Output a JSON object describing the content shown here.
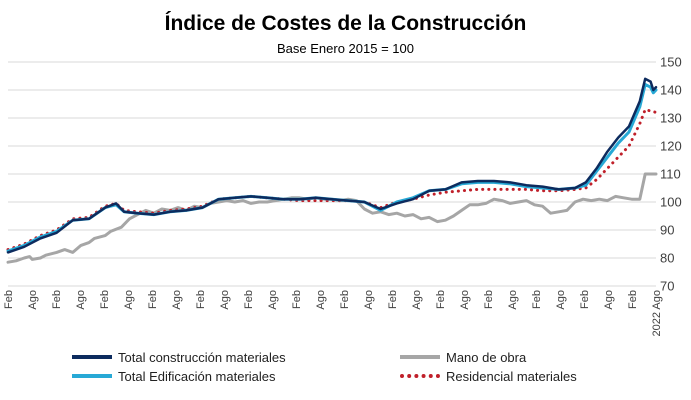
{
  "chart_data": {
    "type": "line",
    "title": "Índice de Costes de la Construcción",
    "subtitle": "Base Enero 2015 = 100",
    "ylim": [
      70,
      150
    ],
    "yticks": [
      70,
      80,
      90,
      100,
      110,
      120,
      130,
      140,
      150
    ],
    "x_tick_labels": [
      "Feb",
      "Ago",
      "Feb",
      "Ago",
      "Feb",
      "Ago",
      "Feb",
      "Ago",
      "Feb",
      "Ago",
      "Feb",
      "Ago",
      "Feb",
      "Ago",
      "Feb",
      "Ago",
      "Feb",
      "Ago",
      "Feb",
      "Ago",
      "Feb",
      "Ago",
      "Feb",
      "Ago",
      "Feb",
      "Ago",
      "Feb",
      "2022 Ago"
    ],
    "x_start": "2009-02",
    "grid": "horizontal",
    "legend_position": "bottom",
    "series": [
      {
        "name": "Total construcción materiales",
        "color": "#0d2b5e",
        "style": "solid",
        "points": [
          [
            0,
            82
          ],
          [
            6,
            84
          ],
          [
            12,
            87
          ],
          [
            18,
            89
          ],
          [
            24,
            93.5
          ],
          [
            30,
            94
          ],
          [
            36,
            98
          ],
          [
            40,
            99.5
          ],
          [
            43,
            96.5
          ],
          [
            48,
            96
          ],
          [
            54,
            95.5
          ],
          [
            60,
            96.5
          ],
          [
            66,
            97
          ],
          [
            72,
            98
          ],
          [
            78,
            101
          ],
          [
            84,
            101.5
          ],
          [
            90,
            102
          ],
          [
            96,
            101.5
          ],
          [
            102,
            101
          ],
          [
            108,
            101
          ],
          [
            114,
            101.5
          ],
          [
            120,
            101
          ],
          [
            126,
            100.5
          ],
          [
            132,
            100
          ],
          [
            138,
            97.5
          ],
          [
            144,
            99.5
          ],
          [
            150,
            101
          ],
          [
            156,
            104
          ],
          [
            162,
            104.5
          ],
          [
            168,
            107
          ],
          [
            174,
            107.5
          ],
          [
            180,
            107.5
          ],
          [
            186,
            107
          ],
          [
            192,
            106
          ],
          [
            198,
            105.5
          ],
          [
            204,
            104.5
          ],
          [
            210,
            105
          ],
          [
            214,
            107
          ],
          [
            218,
            112
          ],
          [
            222,
            118
          ],
          [
            226,
            123
          ],
          [
            230,
            127
          ],
          [
            234,
            136
          ],
          [
            236,
            144
          ],
          [
            238,
            143
          ],
          [
            239,
            140
          ],
          [
            240,
            141
          ]
        ]
      },
      {
        "name": "Total Edificación materiales",
        "color": "#27a9d6",
        "style": "solid",
        "points": [
          [
            0,
            82.5
          ],
          [
            6,
            84.5
          ],
          [
            12,
            87.5
          ],
          [
            18,
            89.5
          ],
          [
            24,
            93.5
          ],
          [
            30,
            94
          ],
          [
            36,
            98
          ],
          [
            40,
            99
          ],
          [
            43,
            96.5
          ],
          [
            48,
            96
          ],
          [
            54,
            95.5
          ],
          [
            60,
            96.5
          ],
          [
            66,
            97
          ],
          [
            72,
            98
          ],
          [
            78,
            101
          ],
          [
            84,
            101.5
          ],
          [
            90,
            102
          ],
          [
            96,
            101.5
          ],
          [
            102,
            101
          ],
          [
            108,
            101
          ],
          [
            114,
            101.5
          ],
          [
            120,
            101
          ],
          [
            126,
            100.5
          ],
          [
            132,
            100
          ],
          [
            138,
            97
          ],
          [
            144,
            100
          ],
          [
            150,
            101.5
          ],
          [
            156,
            104
          ],
          [
            162,
            104.5
          ],
          [
            168,
            106.5
          ],
          [
            174,
            107
          ],
          [
            180,
            107
          ],
          [
            186,
            106.5
          ],
          [
            192,
            105.5
          ],
          [
            198,
            105
          ],
          [
            204,
            104.5
          ],
          [
            210,
            105
          ],
          [
            214,
            106
          ],
          [
            218,
            111
          ],
          [
            222,
            116
          ],
          [
            226,
            121
          ],
          [
            230,
            125
          ],
          [
            234,
            134
          ],
          [
            236,
            142
          ],
          [
            238,
            141
          ],
          [
            239,
            139
          ],
          [
            240,
            140
          ]
        ]
      },
      {
        "name": "Mano de obra",
        "color": "#a6a6a6",
        "style": "solid",
        "points": [
          [
            0,
            78.5
          ],
          [
            3,
            79
          ],
          [
            6,
            80
          ],
          [
            8,
            80.5
          ],
          [
            9,
            79.5
          ],
          [
            12,
            80
          ],
          [
            14,
            81
          ],
          [
            18,
            82
          ],
          [
            21,
            83
          ],
          [
            24,
            82
          ],
          [
            27,
            84.5
          ],
          [
            30,
            85.5
          ],
          [
            32,
            87
          ],
          [
            36,
            88
          ],
          [
            38,
            89.5
          ],
          [
            42,
            91
          ],
          [
            45,
            94
          ],
          [
            48,
            95.5
          ],
          [
            51,
            97
          ],
          [
            54,
            96
          ],
          [
            57,
            97.5
          ],
          [
            60,
            97
          ],
          [
            63,
            98
          ],
          [
            66,
            97
          ],
          [
            69,
            98.5
          ],
          [
            72,
            98
          ],
          [
            75,
            99.5
          ],
          [
            78,
            100
          ],
          [
            81,
            100.5
          ],
          [
            84,
            100
          ],
          [
            87,
            100.5
          ],
          [
            90,
            99.5
          ],
          [
            93,
            100
          ],
          [
            96,
            100
          ],
          [
            99,
            100.5
          ],
          [
            102,
            101
          ],
          [
            105,
            101.5
          ],
          [
            108,
            101.5
          ],
          [
            111,
            101
          ],
          [
            114,
            101.5
          ],
          [
            117,
            101
          ],
          [
            120,
            101
          ],
          [
            123,
            100.5
          ],
          [
            126,
            101
          ],
          [
            129,
            100.5
          ],
          [
            132,
            97.5
          ],
          [
            135,
            96
          ],
          [
            138,
            96.5
          ],
          [
            141,
            95.5
          ],
          [
            144,
            96
          ],
          [
            147,
            95
          ],
          [
            150,
            95.5
          ],
          [
            153,
            94
          ],
          [
            156,
            94.5
          ],
          [
            159,
            93
          ],
          [
            162,
            93.5
          ],
          [
            165,
            95
          ],
          [
            168,
            97
          ],
          [
            171,
            99
          ],
          [
            174,
            99
          ],
          [
            177,
            99.5
          ],
          [
            180,
            101
          ],
          [
            183,
            100.5
          ],
          [
            186,
            99.5
          ],
          [
            189,
            100
          ],
          [
            192,
            100.5
          ],
          [
            195,
            99
          ],
          [
            198,
            98.5
          ],
          [
            201,
            96
          ],
          [
            204,
            96.5
          ],
          [
            207,
            97
          ],
          [
            210,
            100
          ],
          [
            213,
            101
          ],
          [
            216,
            100.5
          ],
          [
            219,
            101
          ],
          [
            222,
            100.5
          ],
          [
            225,
            102
          ],
          [
            228,
            101.5
          ],
          [
            231,
            101
          ],
          [
            234,
            101
          ],
          [
            236,
            110
          ],
          [
            238,
            110
          ],
          [
            240,
            110
          ]
        ]
      },
      {
        "name": "Residencial materiales",
        "color": "#c0202a",
        "style": "dotted",
        "points": [
          [
            0,
            83
          ],
          [
            6,
            85
          ],
          [
            12,
            88
          ],
          [
            18,
            90
          ],
          [
            24,
            94
          ],
          [
            30,
            94.5
          ],
          [
            36,
            98.5
          ],
          [
            40,
            99.5
          ],
          [
            43,
            97
          ],
          [
            48,
            96.5
          ],
          [
            54,
            96
          ],
          [
            60,
            97
          ],
          [
            66,
            97.5
          ],
          [
            72,
            98.5
          ],
          [
            78,
            101
          ],
          [
            84,
            101.5
          ],
          [
            90,
            102
          ],
          [
            96,
            101.5
          ],
          [
            102,
            101
          ],
          [
            108,
            100.5
          ],
          [
            114,
            100.5
          ],
          [
            120,
            100.5
          ],
          [
            126,
            100.5
          ],
          [
            132,
            100
          ],
          [
            138,
            98
          ],
          [
            144,
            100
          ],
          [
            150,
            101
          ],
          [
            156,
            102.5
          ],
          [
            162,
            103.5
          ],
          [
            168,
            104
          ],
          [
            174,
            104.5
          ],
          [
            180,
            104.5
          ],
          [
            186,
            104.5
          ],
          [
            192,
            104.5
          ],
          [
            198,
            104
          ],
          [
            204,
            104
          ],
          [
            210,
            104.5
          ],
          [
            214,
            105
          ],
          [
            218,
            108
          ],
          [
            222,
            112
          ],
          [
            226,
            116
          ],
          [
            230,
            120
          ],
          [
            234,
            128
          ],
          [
            236,
            133
          ],
          [
            238,
            132.5
          ],
          [
            240,
            132
          ]
        ]
      }
    ]
  },
  "legend": [
    {
      "name": "Total construcción materiales",
      "color": "#0d2b5e",
      "style": "solid"
    },
    {
      "name": "Mano de obra",
      "color": "#a6a6a6",
      "style": "solid"
    },
    {
      "name": "Total Edificación materiales",
      "color": "#27a9d6",
      "style": "solid"
    },
    {
      "name": "Residencial materiales",
      "color": "#c0202a",
      "style": "dotted"
    }
  ]
}
